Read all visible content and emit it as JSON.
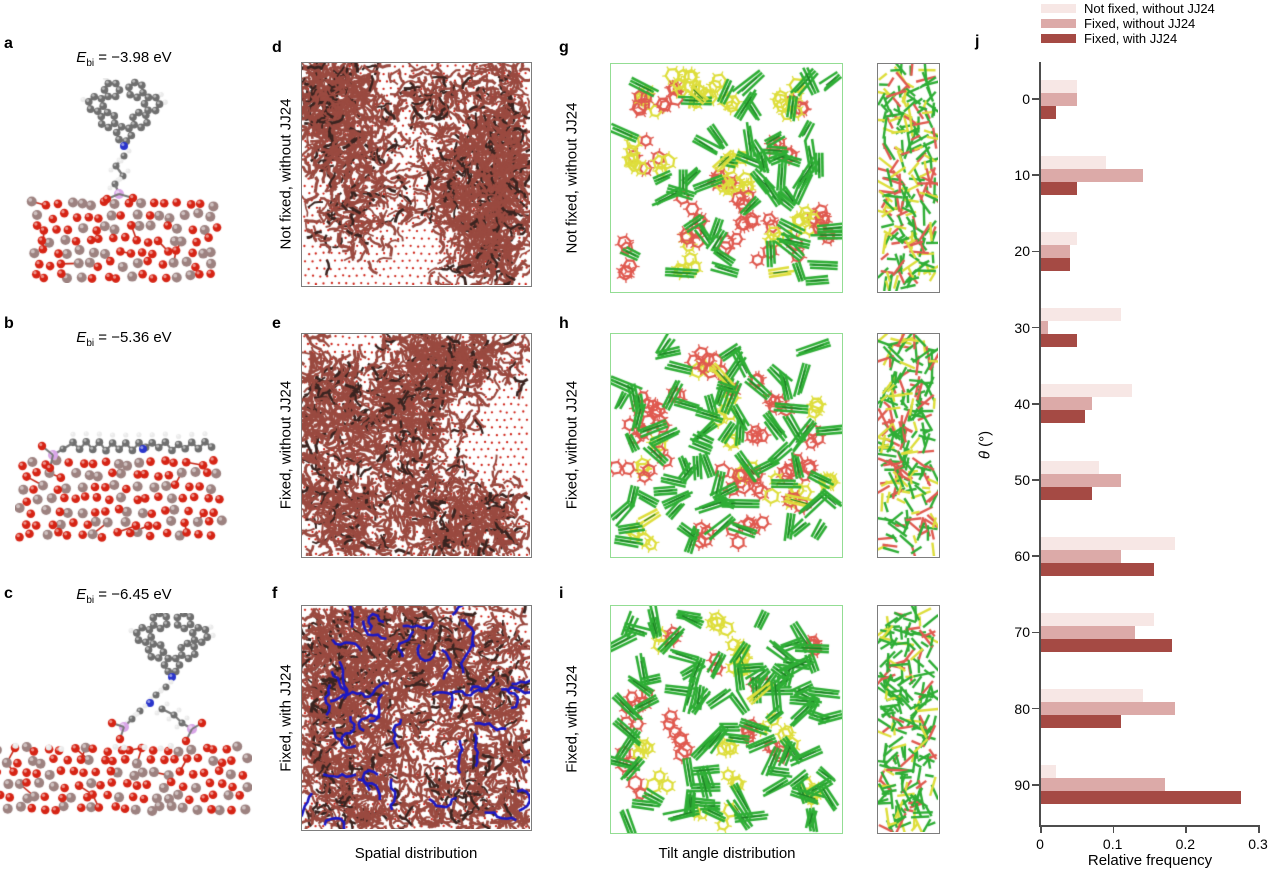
{
  "panels_abc": [
    {
      "letter": "a",
      "energy_symbol": "E",
      "energy_sub": "bi",
      "energy_rest": " = −3.98 eV",
      "energy_eV": -3.98
    },
    {
      "letter": "b",
      "energy_symbol": "E",
      "energy_sub": "bi",
      "energy_rest": " = −5.36 eV",
      "energy_eV": -5.36
    },
    {
      "letter": "c",
      "energy_symbol": "E",
      "energy_sub": "bi",
      "energy_rest": " = −6.45 eV",
      "energy_eV": -6.45
    }
  ],
  "spatial_column": {
    "caption": "Spatial distribution",
    "panels": [
      {
        "letter": "d",
        "row_label": "Not fixed, without JJ24"
      },
      {
        "letter": "e",
        "row_label": "Fixed, without JJ24"
      },
      {
        "letter": "f",
        "row_label": "Fixed, with JJ24"
      }
    ]
  },
  "tilt_column": {
    "caption": "Tilt angle distribution",
    "panels": [
      {
        "letter": "g",
        "row_label": "Not fixed, without JJ24"
      },
      {
        "letter": "h",
        "row_label": "Fixed, without JJ24"
      },
      {
        "letter": "i",
        "row_label": "Fixed, with JJ24"
      }
    ]
  },
  "chart_panel": {
    "letter": "j"
  },
  "chart_data": {
    "type": "bar",
    "orientation": "horizontal",
    "title": "",
    "xlabel": "Relative frequency",
    "ylabel": "θ (°)",
    "ylabel_symbol": "θ",
    "ylabel_rest": " (°)",
    "xlim": [
      0,
      0.3
    ],
    "xticks": [
      "0",
      "0.1",
      "0.2",
      "0.3"
    ],
    "grid": false,
    "legend_position": "top-right",
    "categories": [
      "0",
      "10",
      "20",
      "30",
      "40",
      "50",
      "60",
      "70",
      "80",
      "90"
    ],
    "series": [
      {
        "name": "Not fixed, without JJ24",
        "color": "#f7e7e5",
        "values": [
          0.05,
          0.09,
          0.05,
          0.11,
          0.125,
          0.08,
          0.185,
          0.155,
          0.14,
          0.02
        ]
      },
      {
        "name": "Fixed, without JJ24",
        "color": "#dcaaa8",
        "values": [
          0.05,
          0.14,
          0.04,
          0.01,
          0.07,
          0.11,
          0.11,
          0.13,
          0.185,
          0.17
        ]
      },
      {
        "name": "Fixed, with JJ24",
        "color": "#a54a44",
        "values": [
          0.02,
          0.05,
          0.04,
          0.05,
          0.06,
          0.07,
          0.155,
          0.18,
          0.11,
          0.275
        ]
      }
    ]
  },
  "colors": {
    "bar_light": "#f7e7e5",
    "bar_medium": "#dcaaa8",
    "bar_dark": "#a54a44",
    "axis": "#4d4d4d",
    "box_border_gray": "#7d7d7d",
    "box_border_green": "#93dd93",
    "lattice_dot": "#cf2318",
    "mol_main": "#9a4a40",
    "mol_dark": "#3a2420",
    "jj24_blue": "#1c18c4",
    "tilt_green": "#2fae36",
    "tilt_green_dark": "#1d7a24",
    "tilt_yellow": "#dede3c",
    "tilt_red": "#e05a50",
    "atom_o": "#d62415",
    "atom_al": "#9d8280",
    "atom_c": "#6f6f6f",
    "atom_h": "#ebebeb",
    "atom_n": "#2a35cc",
    "atom_p": "#d9a6e8",
    "bond_gray": "#7a7a7a",
    "bond_red": "#c62717"
  }
}
